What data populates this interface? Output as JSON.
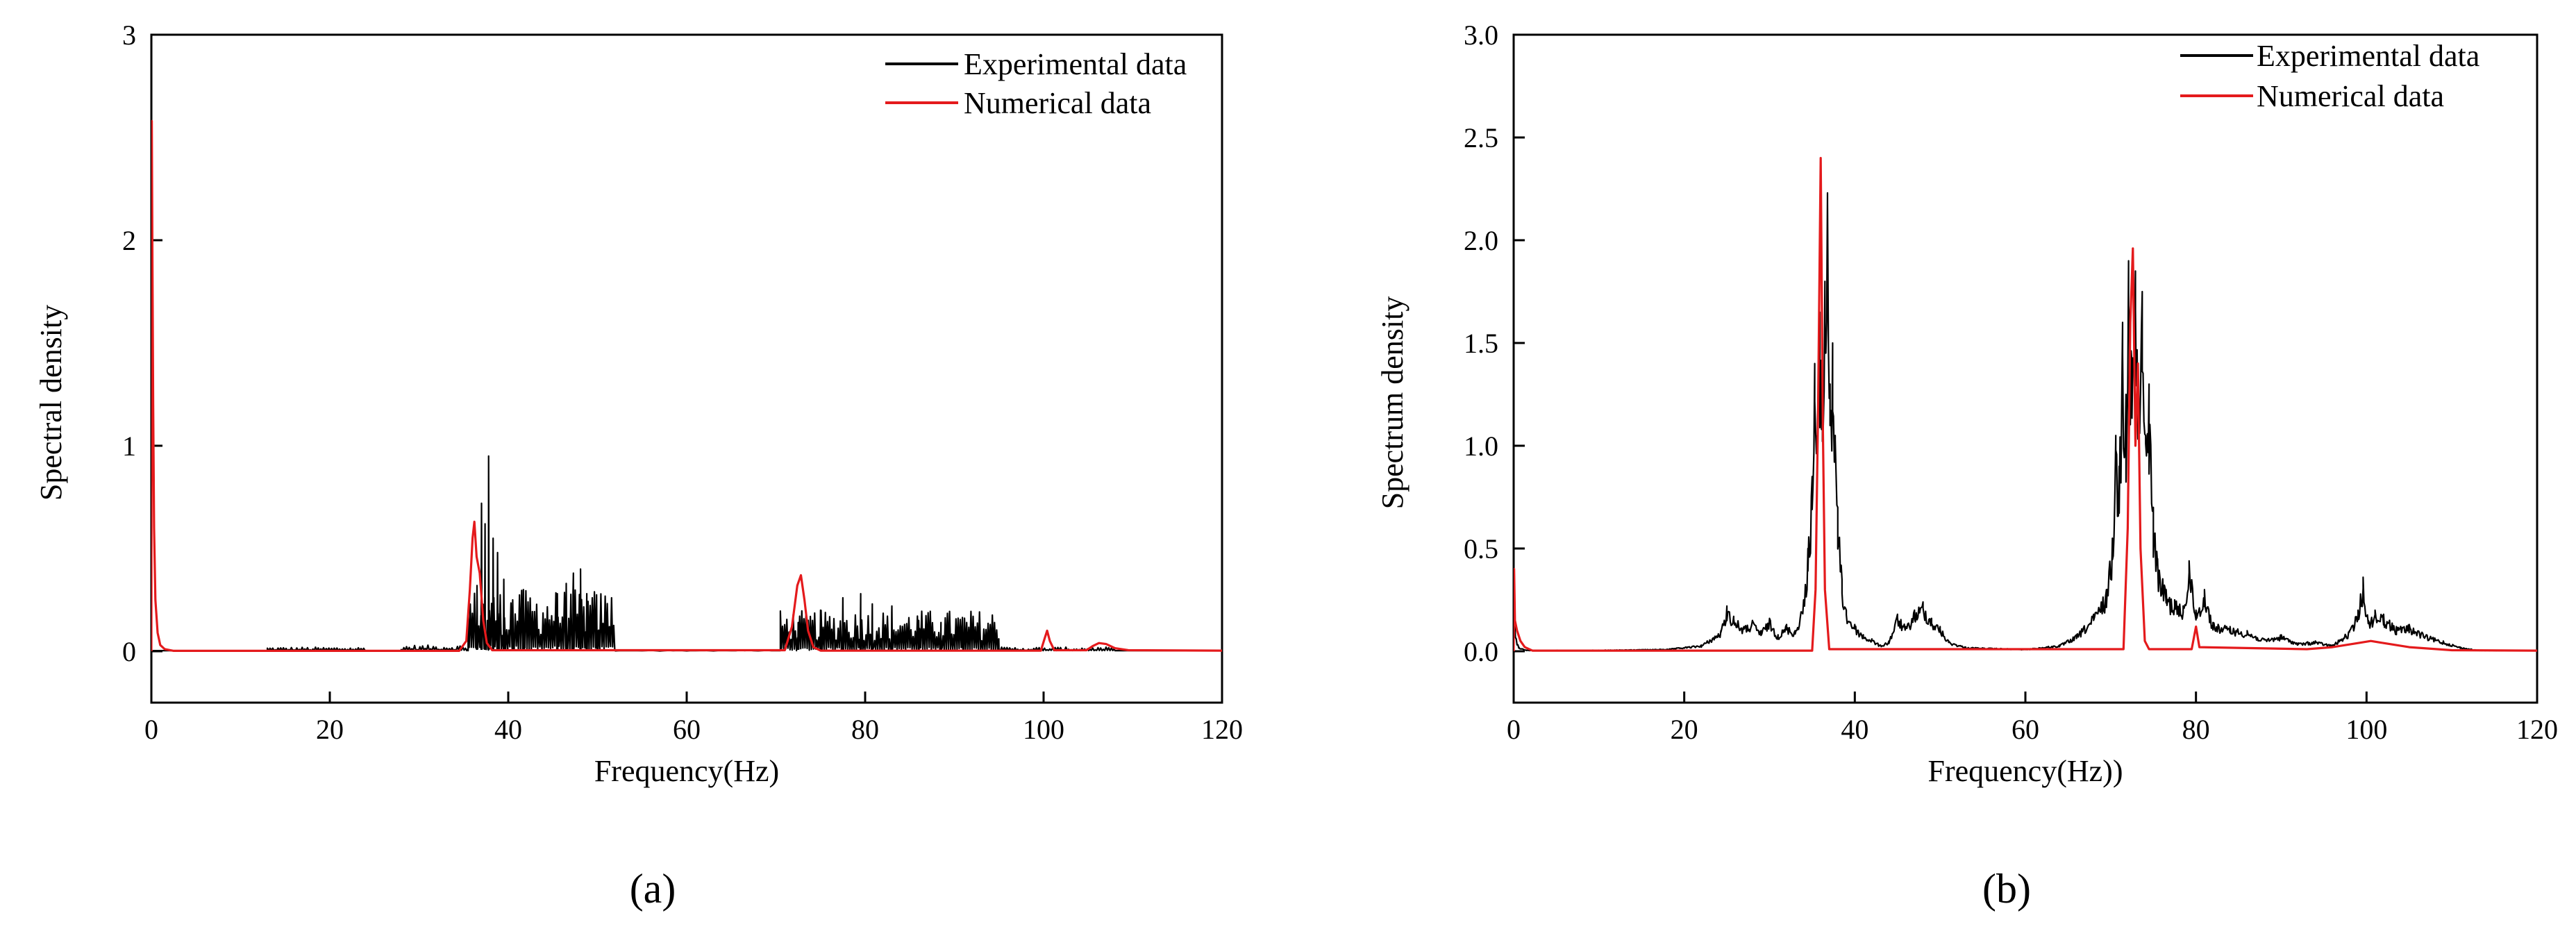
{
  "chart_data": [
    {
      "type": "line",
      "panel_label": "(a)",
      "xlabel": "Frequency(Hz)",
      "ylabel": "Spectral density",
      "xlim": [
        0,
        120
      ],
      "ylim": [
        -0.25,
        3
      ],
      "xticks": [
        0,
        20,
        40,
        60,
        80,
        100,
        120
      ],
      "yticks": [
        0,
        1,
        2,
        3
      ],
      "ytick_labels": [
        "0",
        "1",
        "2",
        "3"
      ],
      "legend_position": "top-right",
      "grid": false,
      "series": [
        {
          "name": "Experimental data",
          "color": "#000000",
          "bursts": [
            {
              "x0": 13,
              "x1": 24,
              "amp": 0.02,
              "step": 0.15
            },
            {
              "x0": 28,
              "x1": 35.5,
              "amp": 0.03,
              "step": 0.15
            },
            {
              "x0": 35.5,
              "x1": 52,
              "amp": 0.3,
              "step": 0.12
            },
            {
              "x0": 52,
              "x1": 70,
              "amp": 0.005,
              "step": 0.5
            },
            {
              "x0": 70.5,
              "x1": 95,
              "amp": 0.2,
              "step": 0.12
            },
            {
              "x0": 95,
              "x1": 108,
              "amp": 0.02,
              "step": 0.15
            }
          ],
          "peaks": [
            [
              36.5,
              0.32
            ],
            [
              37.0,
              0.72
            ],
            [
              37.4,
              0.62
            ],
            [
              37.8,
              0.95
            ],
            [
              38.3,
              0.55
            ],
            [
              38.8,
              0.48
            ],
            [
              39.5,
              0.35
            ],
            [
              40.5,
              0.25
            ],
            [
              41.7,
              0.3
            ],
            [
              45.5,
              0.28
            ],
            [
              46.5,
              0.33
            ],
            [
              47.3,
              0.38
            ],
            [
              48.1,
              0.4
            ],
            [
              48.8,
              0.28
            ],
            [
              50.0,
              0.1
            ],
            [
              72.5,
              0.14
            ],
            [
              75.0,
              0.2
            ],
            [
              77.5,
              0.26
            ],
            [
              79.5,
              0.28
            ],
            [
              80.8,
              0.23
            ],
            [
              83.0,
              0.22
            ],
            [
              86.0,
              0.15
            ],
            [
              88.5,
              0.14
            ],
            [
              91.0,
              0.08
            ]
          ]
        },
        {
          "name": "Numerical data",
          "color": "#e41a1c",
          "points": [
            [
              0,
              0
            ],
            [
              0.05,
              2.58
            ],
            [
              0.12,
              1.9
            ],
            [
              0.2,
              1.2
            ],
            [
              0.3,
              0.6
            ],
            [
              0.45,
              0.25
            ],
            [
              0.7,
              0.09
            ],
            [
              1.0,
              0.03
            ],
            [
              1.5,
              0.01
            ],
            [
              2.5,
              0.002
            ],
            [
              34.5,
              0.002
            ],
            [
              35.3,
              0.05
            ],
            [
              35.7,
              0.3
            ],
            [
              36.0,
              0.55
            ],
            [
              36.2,
              0.63
            ],
            [
              36.45,
              0.46
            ],
            [
              36.8,
              0.38
            ],
            [
              37.2,
              0.15
            ],
            [
              37.6,
              0.04
            ],
            [
              38.2,
              0.005
            ],
            [
              71.0,
              0.005
            ],
            [
              71.8,
              0.12
            ],
            [
              72.4,
              0.32
            ],
            [
              72.8,
              0.37
            ],
            [
              73.2,
              0.25
            ],
            [
              73.6,
              0.1
            ],
            [
              74.2,
              0.02
            ],
            [
              75.0,
              0.003
            ],
            [
              99.7,
              0.003
            ],
            [
              100.1,
              0.06
            ],
            [
              100.4,
              0.1
            ],
            [
              100.7,
              0.05
            ],
            [
              101.2,
              0.005
            ],
            [
              104.8,
              0.005
            ],
            [
              105.5,
              0.025
            ],
            [
              106.2,
              0.04
            ],
            [
              107.0,
              0.035
            ],
            [
              108.0,
              0.015
            ],
            [
              109.5,
              0.005
            ],
            [
              120,
              0.003
            ]
          ]
        }
      ]
    },
    {
      "type": "line",
      "panel_label": "(b)",
      "xlabel": "Frequency(Hz))",
      "ylabel": "Spectrum density",
      "xlim": [
        0,
        120
      ],
      "ylim": [
        -0.25,
        3
      ],
      "xticks": [
        0,
        20,
        40,
        60,
        80,
        100,
        120
      ],
      "yticks": [
        0,
        0.5,
        1,
        1.5,
        2,
        2.5,
        3
      ],
      "ytick_labels": [
        "0.0",
        "0.5",
        "1.0",
        "1.5",
        "2.0",
        "2.5",
        "3.0"
      ],
      "legend_position": "top-right",
      "grid": false,
      "series": [
        {
          "name": "Experimental data",
          "color": "#000000",
          "points": [
            [
              0,
              0
            ],
            [
              0.05,
              0.2
            ],
            [
              0.15,
              0.12
            ],
            [
              0.3,
              0.06
            ],
            [
              0.6,
              0.02
            ],
            [
              1.5,
              0.005
            ],
            [
              10,
              0.005
            ],
            [
              18,
              0.01
            ],
            [
              22,
              0.03
            ],
            [
              24.3,
              0.1
            ],
            [
              25.0,
              0.22
            ],
            [
              25.8,
              0.17
            ],
            [
              27,
              0.12
            ],
            [
              28,
              0.15
            ],
            [
              29,
              0.1
            ],
            [
              30,
              0.16
            ],
            [
              31,
              0.08
            ],
            [
              32,
              0.13
            ],
            [
              33,
              0.1
            ],
            [
              34,
              0.25
            ],
            [
              34.5,
              0.5
            ],
            [
              35.0,
              0.85
            ],
            [
              35.3,
              1.4
            ],
            [
              35.6,
              1.05
            ],
            [
              35.9,
              1.65
            ],
            [
              36.2,
              1.25
            ],
            [
              36.5,
              1.8
            ],
            [
              36.8,
              2.23
            ],
            [
              37.1,
              1.3
            ],
            [
              37.4,
              1.5
            ],
            [
              37.7,
              1.05
            ],
            [
              38.0,
              0.7
            ],
            [
              38.5,
              0.35
            ],
            [
              39.0,
              0.2
            ],
            [
              40,
              0.13
            ],
            [
              41,
              0.08
            ],
            [
              42,
              0.06
            ],
            [
              43,
              0.03
            ],
            [
              44,
              0.05
            ],
            [
              45,
              0.18
            ],
            [
              46,
              0.12
            ],
            [
              47,
              0.2
            ],
            [
              48,
              0.24
            ],
            [
              49,
              0.16
            ],
            [
              50,
              0.12
            ],
            [
              51,
              0.05
            ],
            [
              53,
              0.02
            ],
            [
              56,
              0.015
            ],
            [
              60,
              0.01
            ],
            [
              64,
              0.03
            ],
            [
              66,
              0.08
            ],
            [
              68,
              0.18
            ],
            [
              69.5,
              0.3
            ],
            [
              70.2,
              0.55
            ],
            [
              70.6,
              1.05
            ],
            [
              71.0,
              0.9
            ],
            [
              71.4,
              1.6
            ],
            [
              71.8,
              1.25
            ],
            [
              72.1,
              1.9
            ],
            [
              72.5,
              1.4
            ],
            [
              72.9,
              1.85
            ],
            [
              73.3,
              1.2
            ],
            [
              73.7,
              1.75
            ],
            [
              74.1,
              1.05
            ],
            [
              74.5,
              1.3
            ],
            [
              75.0,
              0.7
            ],
            [
              75.5,
              0.45
            ],
            [
              76.5,
              0.3
            ],
            [
              77.5,
              0.25
            ],
            [
              78.5,
              0.22
            ],
            [
              79.2,
              0.44
            ],
            [
              80,
              0.2
            ],
            [
              81,
              0.3
            ],
            [
              82,
              0.14
            ],
            [
              84,
              0.12
            ],
            [
              86,
              0.1
            ],
            [
              88,
              0.06
            ],
            [
              90,
              0.08
            ],
            [
              92,
              0.04
            ],
            [
              94,
              0.05
            ],
            [
              96,
              0.03
            ],
            [
              98,
              0.1
            ],
            [
              99.0,
              0.2
            ],
            [
              99.6,
              0.36
            ],
            [
              100.2,
              0.15
            ],
            [
              101,
              0.2
            ],
            [
              102,
              0.18
            ],
            [
              103.5,
              0.12
            ],
            [
              105,
              0.13
            ],
            [
              107,
              0.08
            ],
            [
              109,
              0.05
            ],
            [
              111,
              0.02
            ],
            [
              113,
              0.005
            ],
            [
              120,
              0.003
            ]
          ],
          "noise_amp": 0.35
        },
        {
          "name": "Numerical data",
          "color": "#e41a1c",
          "points": [
            [
              0,
              0
            ],
            [
              0.05,
              0.4
            ],
            [
              0.15,
              0.15
            ],
            [
              0.4,
              0.1
            ],
            [
              0.8,
              0.05
            ],
            [
              1.3,
              0.02
            ],
            [
              2.2,
              0.003
            ],
            [
              35.0,
              0.003
            ],
            [
              35.4,
              0.3
            ],
            [
              35.7,
              1.2
            ],
            [
              36.0,
              2.4
            ],
            [
              36.25,
              1.1
            ],
            [
              36.5,
              0.3
            ],
            [
              37.0,
              0.01
            ],
            [
              71.5,
              0.01
            ],
            [
              72.0,
              0.6
            ],
            [
              72.3,
              1.6
            ],
            [
              72.6,
              1.96
            ],
            [
              72.9,
              1.0
            ],
            [
              73.2,
              1.4
            ],
            [
              73.5,
              0.5
            ],
            [
              74.0,
              0.05
            ],
            [
              74.5,
              0.01
            ],
            [
              79.5,
              0.01
            ],
            [
              80.0,
              0.12
            ],
            [
              80.4,
              0.02
            ],
            [
              93,
              0.01
            ],
            [
              96,
              0.02
            ],
            [
              99,
              0.04
            ],
            [
              100.5,
              0.05
            ],
            [
              102,
              0.04
            ],
            [
              105,
              0.02
            ],
            [
              110,
              0.005
            ],
            [
              120,
              0.003
            ]
          ]
        }
      ]
    }
  ]
}
